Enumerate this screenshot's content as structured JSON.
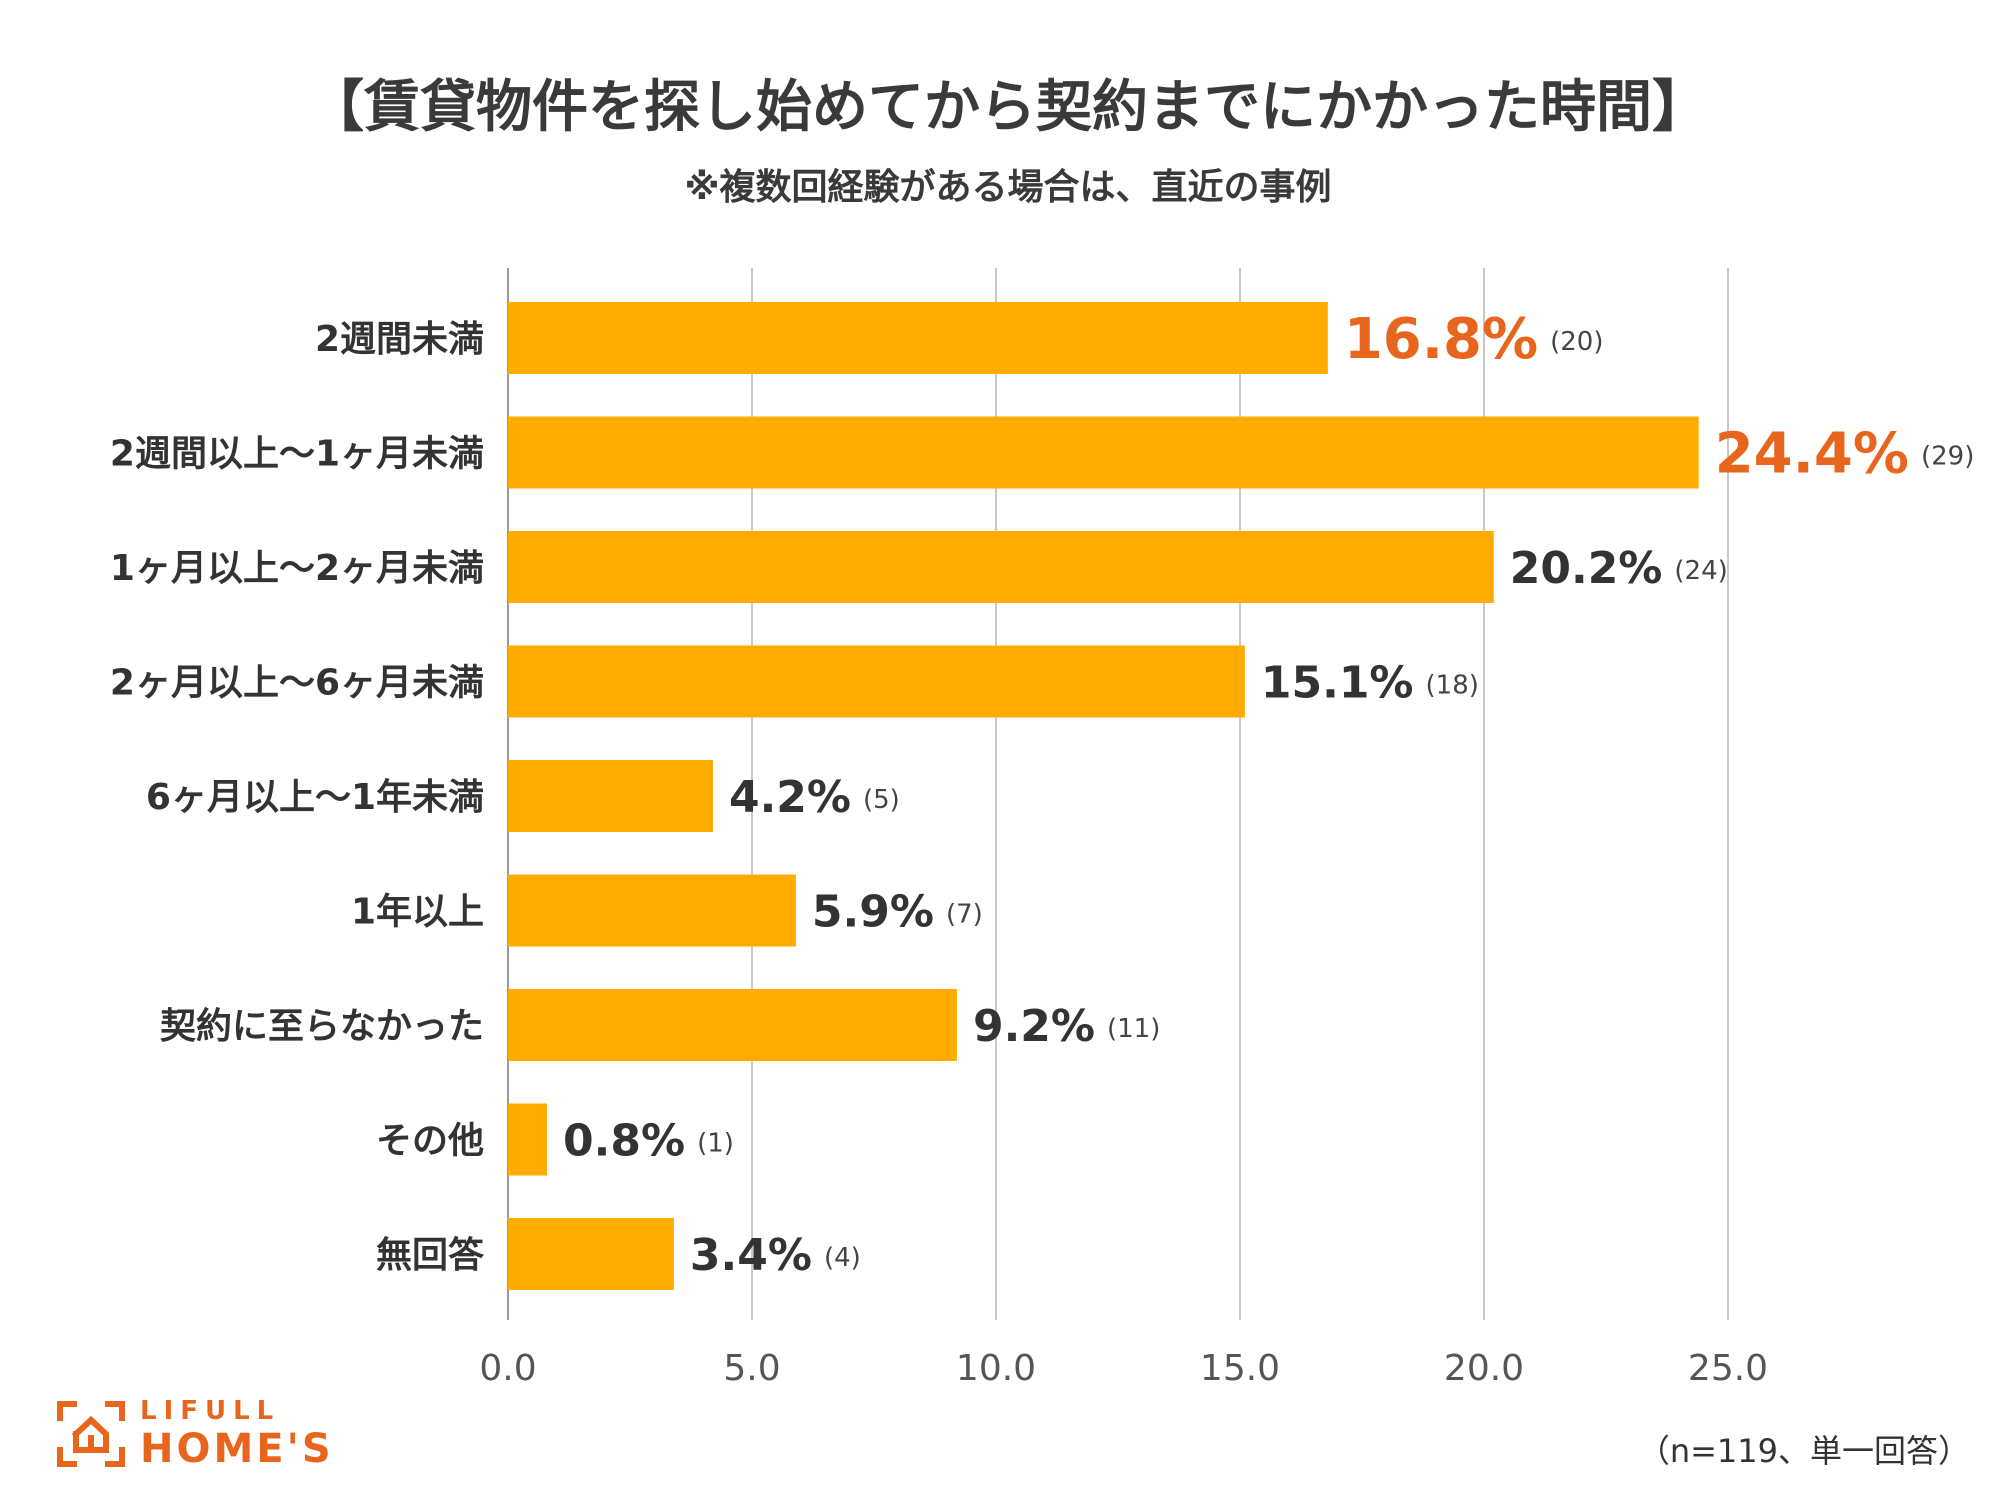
{
  "chart_data": {
    "type": "bar",
    "orientation": "horizontal",
    "title": "【賃貸物件を探し始めてから契約までにかかった時間】",
    "subtitle": "※複数回経験がある場合は、直近の事例",
    "categories": [
      "2週間未満",
      "2週間以上～1ヶ月未満",
      "1ヶ月以上～2ヶ月未満",
      "2ヶ月以上～6ヶ月未満",
      "6ヶ月以上～1年未満",
      "1年以上",
      "契約に至らなかった",
      "その他",
      "無回答"
    ],
    "values": [
      16.8,
      24.4,
      20.2,
      15.1,
      4.2,
      5.9,
      9.2,
      0.8,
      3.4
    ],
    "value_labels": [
      "16.8%",
      "24.4%",
      "20.2%",
      "15.1%",
      "4.2%",
      "5.9%",
      "9.2%",
      "0.8%",
      "3.4%"
    ],
    "counts": [
      "(20)",
      "(29)",
      "(24)",
      "(18)",
      "(5)",
      "(7)",
      "(11)",
      "(1)",
      "(4)"
    ],
    "highlighted": [
      true,
      true,
      false,
      false,
      false,
      false,
      false,
      false,
      false
    ],
    "x_ticks": [
      "0.0",
      "5.0",
      "10.0",
      "15.0",
      "20.0",
      "25.0"
    ],
    "xlim": [
      0,
      30
    ],
    "grid": true,
    "bar_color": "#FFAB00",
    "highlight_color": "#E8651E"
  },
  "footer": {
    "logo_top": "LIFULL",
    "logo_bottom": "HOME'S",
    "note": "（n=119、単一回答）"
  }
}
